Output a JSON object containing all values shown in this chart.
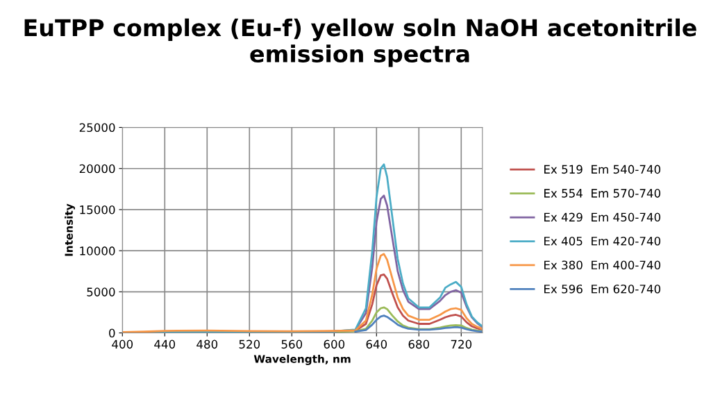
{
  "chart_data": {
    "type": "line",
    "title": "EuTPP complex (Eu-f) yellow soln NaOH acetonitrile emission spectra",
    "xlabel": "Wavelength, nm",
    "ylabel": "Intensity",
    "xlim": [
      400,
      740
    ],
    "xticks": [
      400,
      440,
      480,
      520,
      560,
      600,
      640,
      680,
      720
    ],
    "ylim": [
      0,
      25000
    ],
    "yticks": [
      0,
      5000,
      10000,
      15000,
      20000,
      25000
    ],
    "grid": true,
    "legend": "right",
    "marker": "none",
    "line_style": "solid",
    "series": [
      {
        "name": "Ex 519  Em 540-740",
        "color": "#c0504d",
        "x": [
          540,
          580,
          600,
          620,
          630,
          636,
          640,
          644,
          647,
          650,
          655,
          660,
          665,
          670,
          680,
          690,
          700,
          705,
          710,
          715,
          720,
          725,
          730,
          735,
          740
        ],
        "values": [
          100,
          150,
          200,
          250,
          1100,
          3500,
          5800,
          7000,
          7100,
          6600,
          4800,
          3100,
          2100,
          1500,
          1100,
          1100,
          1600,
          1900,
          2100,
          2200,
          2000,
          1300,
          800,
          550,
          400
        ]
      },
      {
        "name": "Ex 554  Em 570-740",
        "color": "#9bbb59",
        "x": [
          570,
          600,
          620,
          630,
          636,
          640,
          644,
          647,
          650,
          655,
          660,
          665,
          670,
          680,
          690,
          700,
          705,
          710,
          715,
          720,
          725,
          730,
          735,
          740
        ],
        "values": [
          100,
          150,
          200,
          500,
          1500,
          2500,
          3000,
          3100,
          2900,
          2100,
          1400,
          900,
          650,
          450,
          450,
          650,
          800,
          900,
          950,
          900,
          600,
          400,
          280,
          200
        ]
      },
      {
        "name": "Ex 429  Em 450-740",
        "color": "#8064a2",
        "x": [
          450,
          500,
          560,
          600,
          620,
          630,
          636,
          640,
          644,
          647,
          650,
          655,
          660,
          665,
          670,
          680,
          690,
          700,
          705,
          710,
          715,
          720,
          725,
          730,
          735,
          740
        ],
        "values": [
          120,
          150,
          120,
          200,
          350,
          2400,
          8000,
          13500,
          16300,
          16700,
          15500,
          11500,
          7500,
          5200,
          3800,
          2900,
          2900,
          3900,
          4600,
          5000,
          5200,
          4900,
          3200,
          1900,
          1200,
          700
        ]
      },
      {
        "name": "Ex 405  Em 420-740",
        "color": "#4bacc6",
        "x": [
          420,
          480,
          540,
          600,
          620,
          630,
          636,
          640,
          644,
          647,
          650,
          655,
          660,
          665,
          670,
          680,
          690,
          700,
          705,
          710,
          715,
          720,
          725,
          730,
          735,
          740
        ],
        "values": [
          100,
          150,
          120,
          200,
          400,
          3000,
          10000,
          16500,
          20000,
          20500,
          19000,
          14000,
          9000,
          6000,
          4200,
          3100,
          3100,
          4300,
          5500,
          5900,
          6200,
          5600,
          3500,
          2000,
          1300,
          800
        ]
      },
      {
        "name": "Ex 380  Em 400-740",
        "color": "#f79646",
        "x": [
          400,
          420,
          440,
          480,
          520,
          560,
          600,
          620,
          630,
          636,
          640,
          644,
          647,
          650,
          655,
          660,
          665,
          670,
          680,
          690,
          700,
          705,
          710,
          715,
          720,
          725,
          730,
          735,
          740
        ],
        "values": [
          100,
          150,
          250,
          280,
          220,
          200,
          250,
          300,
          1500,
          4700,
          7800,
          9400,
          9600,
          8900,
          6600,
          4300,
          2900,
          2100,
          1600,
          1600,
          2200,
          2600,
          2900,
          3000,
          2800,
          1800,
          1100,
          750,
          500
        ]
      },
      {
        "name": "Ex 596  Em 620-740",
        "color": "#4f81bd",
        "x": [
          620,
          630,
          636,
          640,
          644,
          647,
          650,
          655,
          660,
          665,
          670,
          680,
          690,
          700,
          705,
          710,
          715,
          720,
          725,
          730,
          735,
          740
        ],
        "values": [
          150,
          350,
          1000,
          1600,
          2000,
          2100,
          1950,
          1500,
          1000,
          700,
          520,
          400,
          400,
          500,
          600,
          650,
          700,
          650,
          450,
          300,
          200,
          150
        ]
      }
    ]
  }
}
